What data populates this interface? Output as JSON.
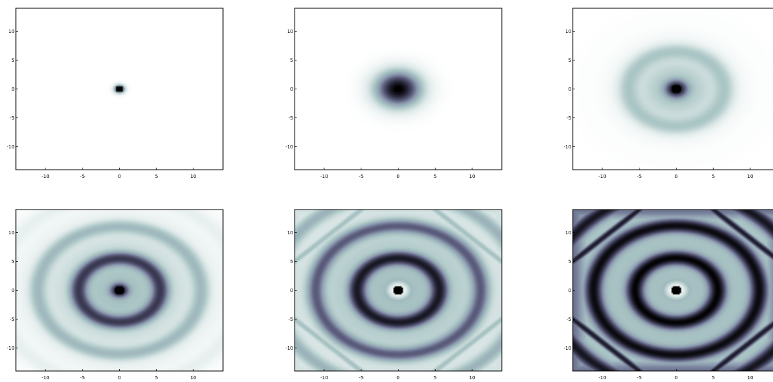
{
  "colormap": {
    "name": "bone_r",
    "stops": [
      "#ffffff",
      "#dde8e8",
      "#a9c4c4",
      "#8c9bb0",
      "#5a5a7a",
      "#2a2a3e",
      "#000000"
    ]
  },
  "chart_data": [
    {
      "type": "heatmap",
      "panel": 1,
      "xlim": [
        -14,
        14
      ],
      "ylim": [
        -14,
        14
      ],
      "x_ticks": [
        -10,
        -5,
        0,
        5,
        10
      ],
      "y_ticks": [
        10,
        5,
        0,
        -5,
        -10
      ],
      "x_tick_labels": [
        "-10",
        "-5",
        "0",
        "5",
        "10"
      ],
      "y_tick_labels": [
        "10",
        "5",
        "0",
        "-5",
        "-10"
      ],
      "pattern": "concentric rings centred at (0, 0)",
      "center_intensity": 1.0,
      "envelope_radius": 0.5,
      "ring_wavenumber": 0,
      "ring_count": 0,
      "diagonal_lines": false
    },
    {
      "type": "heatmap",
      "panel": 2,
      "xlim": [
        -14,
        14
      ],
      "ylim": [
        -14,
        14
      ],
      "x_ticks": [
        -10,
        -5,
        0,
        5,
        10
      ],
      "y_ticks": [
        10,
        5,
        0,
        -5,
        -10
      ],
      "x_tick_labels": [
        "-10",
        "-5",
        "0",
        "5",
        "10"
      ],
      "y_tick_labels": [
        "10",
        "5",
        "0",
        "-5",
        "-10"
      ],
      "pattern": "concentric rings centred at (0, 0)",
      "center_intensity": 1.0,
      "envelope_radius": 2.2,
      "ring_wavenumber": 0,
      "ring_count": 0,
      "diagonal_lines": false
    },
    {
      "type": "heatmap",
      "panel": 3,
      "xlim": [
        -14,
        14
      ],
      "ylim": [
        -14,
        14
      ],
      "x_ticks": [
        -10,
        -5,
        0,
        5,
        10
      ],
      "y_ticks": [
        10,
        5,
        0,
        -5,
        -10
      ],
      "x_tick_labels": [
        "-10",
        "-5",
        "0",
        "5",
        "10"
      ],
      "y_tick_labels": [
        "10",
        "5",
        "0",
        "-5",
        "-10"
      ],
      "pattern": "concentric rings centred at (0, 0)",
      "center_intensity": 1.0,
      "envelope_radius": 4.5,
      "ring_wavenumber": 0.9,
      "ring_count": 1,
      "diagonal_lines": false
    },
    {
      "type": "heatmap",
      "panel": 4,
      "xlim": [
        -14,
        14
      ],
      "ylim": [
        -14,
        14
      ],
      "x_ticks": [
        -10,
        -5,
        0,
        5,
        10
      ],
      "y_ticks": [
        10,
        5,
        0,
        -5,
        -10
      ],
      "x_tick_labels": [
        "-10",
        "-5",
        "0",
        "5",
        "10"
      ],
      "y_tick_labels": [
        "10",
        "5",
        "0",
        "-5",
        "-10"
      ],
      "pattern": "concentric rings centred at (0, 0)",
      "center_intensity": 1.0,
      "envelope_radius": 8.0,
      "ring_wavenumber": 1.12,
      "ring_count": 3,
      "diagonal_lines": false
    },
    {
      "type": "heatmap",
      "panel": 5,
      "xlim": [
        -14,
        14
      ],
      "ylim": [
        -14,
        14
      ],
      "x_ticks": [
        -10,
        -5,
        0,
        5,
        10
      ],
      "y_ticks": [
        10,
        5,
        0,
        -5,
        -10
      ],
      "x_tick_labels": [
        "-10",
        "-5",
        "0",
        "5",
        "10"
      ],
      "y_tick_labels": [
        "10",
        "5",
        "0",
        "-5",
        "-10"
      ],
      "pattern": "concentric rings centred at (0, 0)",
      "center_intensity": 1.0,
      "envelope_radius": 12.5,
      "ring_wavenumber": 1.12,
      "ring_count": 5,
      "diagonal_lines": true
    },
    {
      "type": "heatmap",
      "panel": 6,
      "xlim": [
        -14,
        14
      ],
      "ylim": [
        -14,
        14
      ],
      "x_ticks": [
        -10,
        -5,
        0,
        5,
        10
      ],
      "y_ticks": [
        10,
        5,
        0,
        -5,
        -10
      ],
      "x_tick_labels": [
        "-10",
        "-5",
        "0",
        "5",
        "10"
      ],
      "y_tick_labels": [
        "10",
        "5",
        "0",
        "-5",
        "-10"
      ],
      "pattern": "concentric rings centred at (0, 0)",
      "center_intensity": 1.0,
      "envelope_radius": 40,
      "ring_wavenumber": 1.12,
      "ring_count": 6,
      "diagonal_lines": true
    }
  ]
}
